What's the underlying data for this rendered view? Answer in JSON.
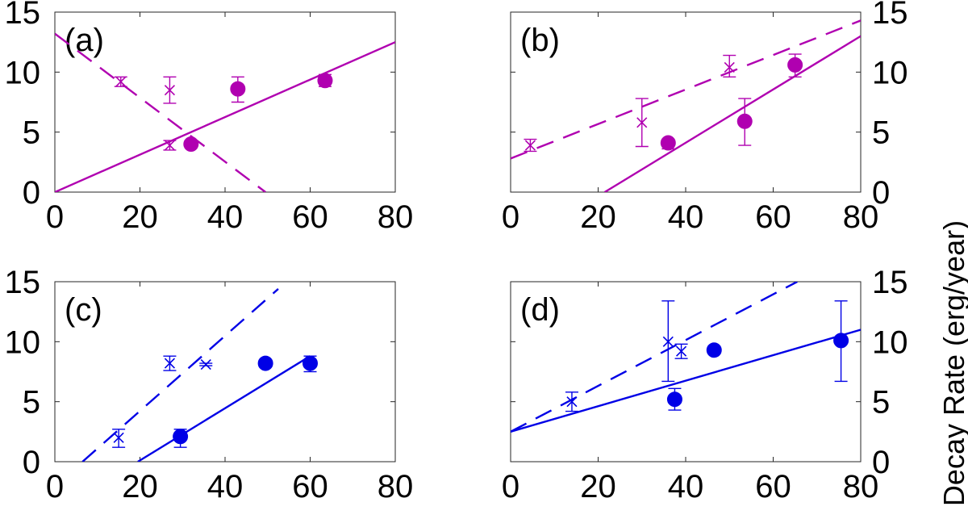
{
  "figure": {
    "right_ylabel": "Decay Rate (erg/year)"
  },
  "chart_data": [
    {
      "type": "scatter",
      "panel_label": "(a)",
      "color": "#B000B0",
      "xlim": [
        0,
        80
      ],
      "ylim": [
        0,
        15
      ],
      "xticks": [
        0,
        20,
        40,
        60,
        80
      ],
      "yticks": [
        0,
        5,
        10,
        15
      ],
      "y_tick_side": "left",
      "series": [
        {
          "name": "circles",
          "marker": "circle",
          "points": [
            [
              32,
              4.0
            ],
            [
              43,
              8.6
            ],
            [
              63.5,
              9.3
            ]
          ],
          "err_low": [
            0.1,
            1.1,
            0.5
          ],
          "err_high": [
            0.1,
            1.0,
            0.5
          ]
        },
        {
          "name": "crosses",
          "marker": "x",
          "points": [
            [
              15.5,
              9.2
            ],
            [
              27,
              8.5
            ],
            [
              27,
              3.9
            ]
          ],
          "err_low": [
            0.4,
            1.1,
            0.4
          ],
          "err_high": [
            0.4,
            1.1,
            0.4
          ]
        }
      ],
      "fits": [
        {
          "name": "solid fit",
          "style": "solid",
          "x1": 0,
          "y1": 0,
          "x2": 80,
          "y2": 12.5
        },
        {
          "name": "dashed fit",
          "style": "dashed",
          "x1": 0,
          "y1": 13.2,
          "x2": 49.5,
          "y2": 0
        }
      ]
    },
    {
      "type": "scatter",
      "panel_label": "(b)",
      "color": "#B000B0",
      "xlim": [
        0,
        80
      ],
      "ylim": [
        0,
        15
      ],
      "xticks": [
        0,
        20,
        40,
        60,
        80
      ],
      "yticks": [
        0,
        5,
        10,
        15
      ],
      "y_tick_side": "right",
      "series": [
        {
          "name": "circles",
          "marker": "circle",
          "points": [
            [
              36,
              4.1
            ],
            [
              53.5,
              5.9
            ],
            [
              65,
              10.6
            ]
          ],
          "err_low": [
            0.5,
            2.0,
            1.0
          ],
          "err_high": [
            0.3,
            1.9,
            0.9
          ]
        },
        {
          "name": "crosses",
          "marker": "x",
          "points": [
            [
              4.5,
              3.9
            ],
            [
              30,
              5.8
            ],
            [
              50,
              10.4
            ]
          ],
          "err_low": [
            0.5,
            2.0,
            0.8
          ],
          "err_high": [
            0.5,
            2.0,
            1.0
          ]
        }
      ],
      "fits": [
        {
          "name": "solid fit",
          "style": "solid",
          "x1": 21.5,
          "y1": 0,
          "x2": 80,
          "y2": 13.0
        },
        {
          "name": "dashed fit",
          "style": "dashed",
          "x1": 0,
          "y1": 2.8,
          "x2": 80,
          "y2": 14.3
        }
      ]
    },
    {
      "type": "scatter",
      "panel_label": "(c)",
      "color": "#0000E6",
      "xlim": [
        0,
        80
      ],
      "ylim": [
        0,
        15
      ],
      "xticks": [
        0,
        20,
        40,
        60,
        80
      ],
      "yticks": [
        0,
        5,
        10,
        15
      ],
      "y_tick_side": "left",
      "series": [
        {
          "name": "circles",
          "marker": "circle",
          "points": [
            [
              29.5,
              2.1
            ],
            [
              49.5,
              8.2
            ],
            [
              60,
              8.2
            ]
          ],
          "err_low": [
            0.9,
            0.1,
            0.7
          ],
          "err_high": [
            0.6,
            0.1,
            0.6
          ]
        },
        {
          "name": "crosses",
          "marker": "x",
          "points": [
            [
              15,
              2.0
            ],
            [
              27,
              8.2
            ],
            [
              35.5,
              8.1
            ]
          ],
          "err_low": [
            0.8,
            0.6,
            0.1
          ],
          "err_high": [
            0.7,
            0.6,
            0.1
          ]
        }
      ],
      "fits": [
        {
          "name": "solid fit",
          "style": "solid",
          "x1": 19.5,
          "y1": 0,
          "x2": 60,
          "y2": 8.8
        },
        {
          "name": "dashed fit",
          "style": "dashed",
          "x1": 6.5,
          "y1": 0,
          "x2": 52.5,
          "y2": 14.4
        }
      ]
    },
    {
      "type": "scatter",
      "panel_label": "(d)",
      "color": "#0000E6",
      "xlim": [
        0,
        80
      ],
      "ylim": [
        0,
        15
      ],
      "xticks": [
        0,
        20,
        40,
        60,
        80
      ],
      "yticks": [
        0,
        5,
        10,
        15
      ],
      "y_tick_side": "right",
      "series": [
        {
          "name": "circles",
          "marker": "circle",
          "points": [
            [
              37.5,
              5.2
            ],
            [
              46.5,
              9.3
            ],
            [
              75.5,
              10.1
            ]
          ],
          "err_low": [
            0.9,
            0.3,
            3.4
          ],
          "err_high": [
            0.9,
            0.3,
            3.3
          ]
        },
        {
          "name": "crosses",
          "marker": "x",
          "points": [
            [
              14,
              5.0
            ],
            [
              36,
              10.0
            ],
            [
              39,
              9.2
            ]
          ],
          "err_low": [
            0.8,
            3.3,
            0.6
          ],
          "err_high": [
            0.8,
            3.4,
            0.6
          ]
        }
      ],
      "fits": [
        {
          "name": "solid fit",
          "style": "solid",
          "x1": 0,
          "y1": 2.5,
          "x2": 80,
          "y2": 11.0
        },
        {
          "name": "dashed fit",
          "style": "dashed",
          "x1": 0,
          "y1": 2.5,
          "x2": 65.5,
          "y2": 15
        }
      ]
    }
  ]
}
